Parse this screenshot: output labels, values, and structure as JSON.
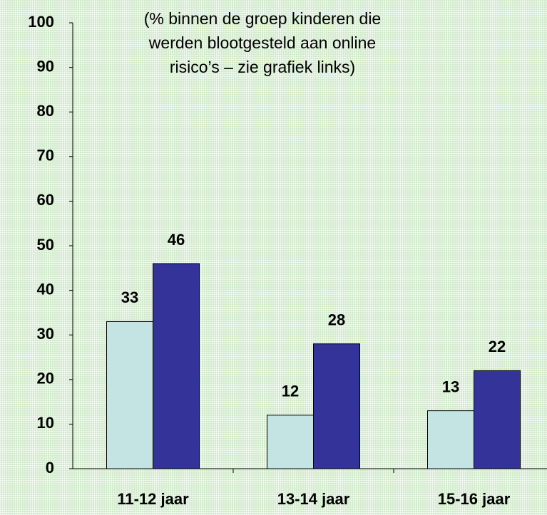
{
  "chart_data": {
    "type": "bar",
    "annotation": [
      "(% binnen de groep kinderen die",
      "werden blootgesteld aan online",
      "risico’s – zie grafiek links)"
    ],
    "categories": [
      "11-12 jaar",
      "13-14 jaar",
      "15-16 jaar"
    ],
    "series": [
      {
        "color": "#c4e4e4",
        "values": [
          33,
          12,
          13
        ]
      },
      {
        "color": "#333399",
        "values": [
          46,
          28,
          22
        ]
      }
    ],
    "ylim": [
      0,
      100
    ],
    "yticks": [
      0,
      10,
      20,
      30,
      40,
      50,
      60,
      70,
      80,
      90,
      100
    ]
  }
}
